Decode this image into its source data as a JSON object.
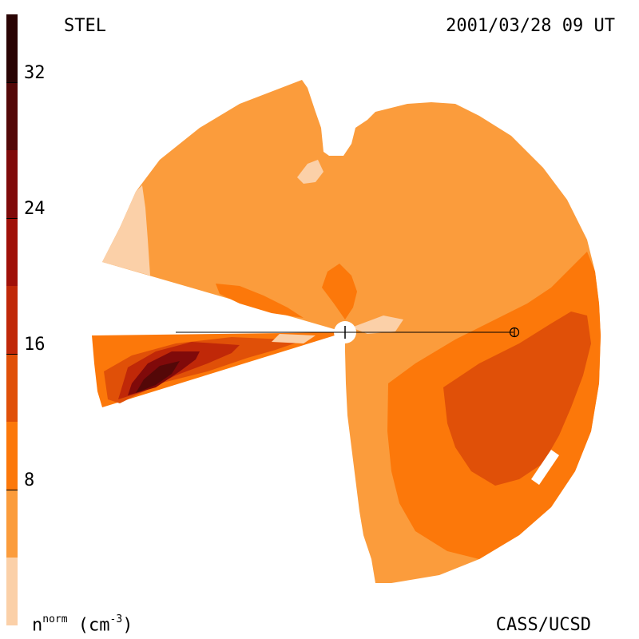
{
  "header": {
    "instrument": "STEL",
    "timestamp": "2001/03/28 09 UT"
  },
  "footer": {
    "unit_base": "n",
    "unit_sup": "norm",
    "unit_rest": " (cm",
    "unit_exp": "-3",
    "unit_close": ")",
    "credit": "CASS/UCSD"
  },
  "colorbar": {
    "min": 0,
    "max": 36,
    "ticks": [
      "8",
      "16",
      "24",
      "32"
    ],
    "levels": [
      {
        "from": 0,
        "to": 4,
        "color": "#fbd0a8"
      },
      {
        "from": 4,
        "to": 8,
        "color": "#fb9c3c"
      },
      {
        "from": 8,
        "to": 12,
        "color": "#fc780a"
      },
      {
        "from": 12,
        "to": 16,
        "color": "#e05008"
      },
      {
        "from": 16,
        "to": 20,
        "color": "#c02808"
      },
      {
        "from": 20,
        "to": 24,
        "color": "#a01008"
      },
      {
        "from": 24,
        "to": 28,
        "color": "#800a0a"
      },
      {
        "from": 28,
        "to": 32,
        "color": "#540808"
      },
      {
        "from": 32,
        "to": 36,
        "color": "#2a0404"
      }
    ]
  },
  "map": {
    "sun_symbol": "sun-center",
    "earth_symbol": "earth-marker"
  }
}
